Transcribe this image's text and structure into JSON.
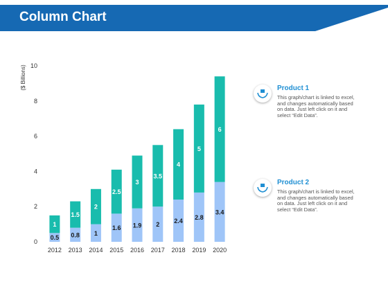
{
  "header": {
    "title": "Column Chart"
  },
  "colors": {
    "header_bg": "#1669b3",
    "product1": "#19bcad",
    "product2": "#9fc5f8",
    "accent": "#1f8fd3"
  },
  "chart_data": {
    "type": "bar",
    "stacked": true,
    "categories": [
      "2012",
      "2013",
      "2014",
      "2015",
      "2016",
      "2017",
      "2018",
      "2019",
      "2020"
    ],
    "series": [
      {
        "name": "Product 2",
        "color": "#9fc5f8",
        "values": [
          0.5,
          0.8,
          1,
          1.6,
          1.9,
          2,
          2.4,
          2.8,
          3.4
        ]
      },
      {
        "name": "Product 1",
        "color": "#19bcad",
        "values": [
          1,
          1.5,
          2,
          2.5,
          3,
          3.5,
          4,
          5,
          6
        ]
      }
    ],
    "ylabel": "($ Billions)",
    "ylim": [
      0,
      10
    ],
    "yticks": [
      0,
      2,
      4,
      6,
      8,
      10
    ],
    "grid": false,
    "legend": "right"
  },
  "legend_panel": [
    {
      "title": "Product 1",
      "icon": "hands-holding-box-icon",
      "description": "This graph/chart is linked to excel, and changes automatically based on data. Just left click on it and select “Edit Data”."
    },
    {
      "title": "Product 2",
      "icon": "hands-holding-box-icon",
      "description": "This graph/chart is linked to excel, and changes automatically based on data. Just left click on it and select “Edit Data”."
    }
  ]
}
